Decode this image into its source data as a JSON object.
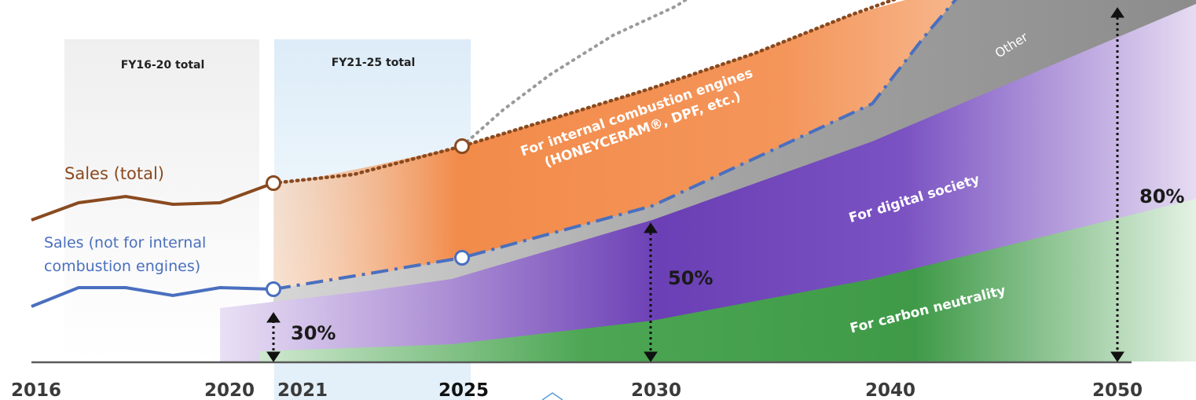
{
  "chart_data": {
    "type": "area",
    "x": [
      2016,
      2020,
      2021,
      2025,
      2030,
      2040,
      2050
    ],
    "x_tick_labels": [
      "2016",
      "2020",
      "2021",
      "2025",
      "2030",
      "2040",
      "2050"
    ],
    "series": [
      {
        "name": "Sales (total)",
        "line_style": "dotted after 2021",
        "color": "#8a4a1f"
      },
      {
        "name": "Sales (not for internal combustion engines)",
        "line_style": "dash-dot after 2021",
        "color": "#4a6fbf"
      }
    ],
    "areas": [
      {
        "name": "For carbon neutrality",
        "color": "#3f9a48"
      },
      {
        "name": "For digital society",
        "color": "#7a4fc0"
      },
      {
        "name": "Other",
        "color": "#9a9a9a"
      },
      {
        "name": "For internal combustion engines\n(HONEYCERAM®, DPF, etc.)",
        "color": "#ef8a45"
      }
    ],
    "share_markers": [
      {
        "year": 2021,
        "label": "30%"
      },
      {
        "year": 2030,
        "label": "50%"
      },
      {
        "year": 2050,
        "label": "80%"
      }
    ],
    "periods": [
      {
        "label": "FY16-20 total"
      },
      {
        "label": "FY21-25 total"
      }
    ],
    "grid": false,
    "legend": "inline labels"
  },
  "labels": {
    "sales_total": "Sales (total)",
    "sales_not_ice_line1": "Sales (not for internal",
    "sales_not_ice_line2": "combustion engines)",
    "ice_line1": "For internal combustion engines",
    "ice_line2": "(HONEYCERAM®, DPF, etc.)",
    "digital": "For digital society",
    "carbon": "For carbon neutrality",
    "other": "Other"
  }
}
